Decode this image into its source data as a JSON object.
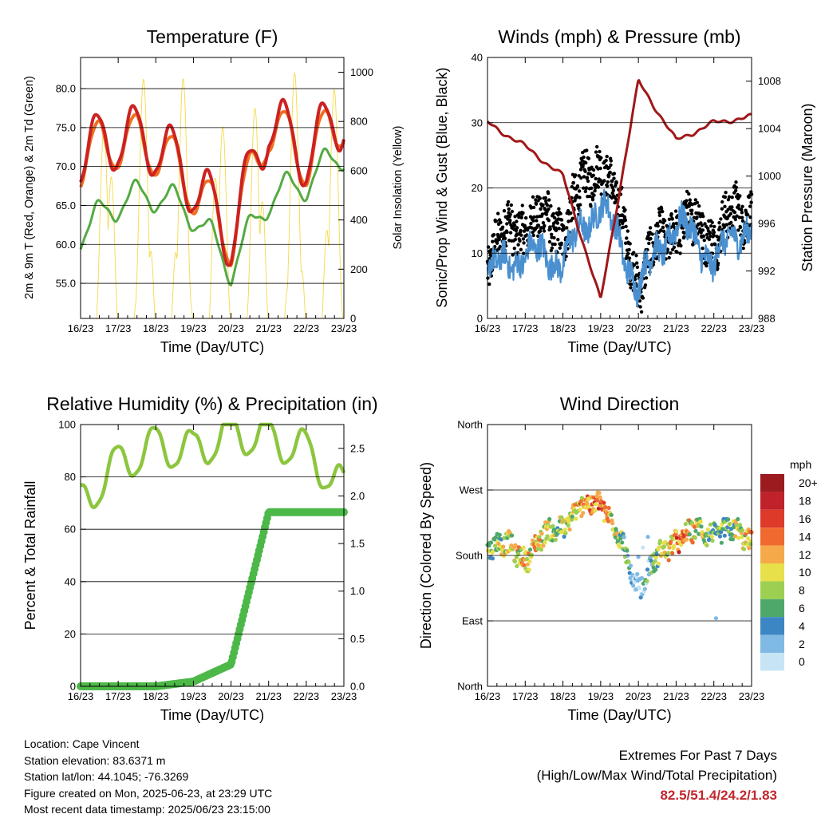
{
  "x_ticks": [
    "16/23",
    "17/23",
    "18/23",
    "19/23",
    "20/23",
    "21/23",
    "22/23",
    "23/23"
  ],
  "x_axis_label": "Time (Day/UTC)",
  "panels": {
    "temperature": {
      "title": "Temperature (F)",
      "left_label": "2m & 9m T (Red, Orange) & 2m Td (Green)",
      "right_label": "Solar Insolation (Yellow)",
      "left_ticks": [
        "55.0",
        "60.0",
        "65.0",
        "70.0",
        "75.0",
        "80.0"
      ],
      "right_ticks": [
        "0",
        "200",
        "400",
        "600",
        "800",
        "1000"
      ]
    },
    "winds": {
      "title": "Winds (mph) & Pressure (mb)",
      "left_label": "Sonic/Prop Wind & Gust (Blue, Black)",
      "right_label": "Station Pressure (Maroon)",
      "left_ticks": [
        "0",
        "10",
        "20",
        "30",
        "40"
      ],
      "right_ticks": [
        "988",
        "992",
        "996",
        "1000",
        "1004",
        "1008"
      ]
    },
    "humidity": {
      "title": "Relative Humidity (%) & Precipitation (in)",
      "left_label": "Percent & Total Rainfall",
      "left_ticks": [
        "0",
        "20",
        "40",
        "60",
        "80",
        "100"
      ],
      "right_ticks": [
        "0.0",
        "0.5",
        "1.0",
        "1.5",
        "2.0",
        "2.5"
      ]
    },
    "direction": {
      "title": "Wind Direction",
      "left_label": "Direction (Colored By Speed)",
      "left_ticks": [
        "North",
        "East",
        "South",
        "West",
        "North"
      ],
      "colorbar_title": "mph",
      "colorbar_labels": [
        "20+",
        "18",
        "16",
        "14",
        "12",
        "10",
        "8",
        "6",
        "4",
        "2",
        "0"
      ]
    }
  },
  "info": {
    "location": "Location: Cape Vincent",
    "elevation": "Station elevation: 83.6371 m",
    "latlon": "Station lat/lon: 44.1045; -76.3269",
    "created": "Figure created on Mon, 2025-06-23, at 23:29 UTC",
    "timestamp": "Most recent data timestamp: 2025/06/23 23:15:00"
  },
  "extremes": {
    "line1": "Extremes For Past 7 Days",
    "line2": "(High/Low/Max Wind/Total Precipitation)",
    "values": "82.5/51.4/24.2/1.83"
  },
  "colors": {
    "temp_2m": "#cc2222",
    "temp_9m": "#f07020",
    "dewpoint": "#55aa44",
    "solar": "#f5d94a",
    "wind": "#4a90d0",
    "gust": "#000000",
    "pressure": "#a01818",
    "humidity": "#8cc63f",
    "precip": "#4cb848",
    "colorbar": [
      "#9b1b1f",
      "#c0222a",
      "#dd3a2a",
      "#f06a30",
      "#f5a94a",
      "#e8e04a",
      "#9ccf52",
      "#4ea86a",
      "#3d86c4",
      "#80b9e4",
      "#c7e4f5"
    ]
  },
  "chart_data": [
    {
      "type": "line",
      "title": "Temperature (F)",
      "x": [
        "16/23",
        "17/23",
        "18/23",
        "19/23",
        "20/23",
        "21/23",
        "22/23",
        "23/23"
      ],
      "series": [
        {
          "name": "2m T",
          "axis": "left",
          "values": [
            71.5,
            74.0,
            73.0,
            68.0,
            61.0,
            76.0,
            71.5,
            77.0
          ]
        },
        {
          "name": "9m T",
          "axis": "left",
          "values": [
            71.0,
            73.5,
            72.5,
            67.5,
            60.8,
            75.5,
            71.0,
            76.5
          ]
        },
        {
          "name": "2m Td",
          "axis": "left",
          "values": [
            61.5,
            65.5,
            66.5,
            64.0,
            57.0,
            66.0,
            68.0,
            72.0
          ]
        },
        {
          "name": "Solar Insolation",
          "axis": "right",
          "values": [
            0,
            0,
            50,
            20,
            0,
            60,
            30,
            0
          ]
        }
      ],
      "xlabel": "Time (Day/UTC)",
      "ylabel": "2m & 9m T (Red, Orange) & 2m Td (Green)",
      "y2label": "Solar Insolation (Yellow)",
      "ylim": [
        50.5,
        84.0
      ],
      "y2lim": [
        0,
        1060
      ],
      "extremes": {
        "high": 82.5,
        "low": 51.4
      }
    },
    {
      "type": "line",
      "title": "Winds (mph) & Pressure (mb)",
      "x": [
        "16/23",
        "17/23",
        "18/23",
        "19/23",
        "20/23",
        "21/23",
        "22/23",
        "23/23"
      ],
      "series": [
        {
          "name": "Wind",
          "axis": "left",
          "values": [
            4,
            7,
            6,
            15,
            2,
            12,
            6,
            12
          ]
        },
        {
          "name": "Gust",
          "axis": "left",
          "values": [
            10,
            15,
            14,
            25,
            6,
            15,
            13,
            17
          ]
        },
        {
          "name": "Station Pressure",
          "axis": "right",
          "values": [
            1004.5,
            1002.5,
            1000.0,
            989.5,
            1008.0,
            1003.0,
            1004.5,
            1005.0
          ]
        }
      ],
      "xlabel": "Time (Day/UTC)",
      "ylabel": "Sonic/Prop Wind & Gust (Blue, Black)",
      "y2label": "Station Pressure (Maroon)",
      "ylim": [
        0,
        40
      ],
      "y2lim": [
        988,
        1010
      ],
      "extremes": {
        "max_wind": 24.2
      }
    },
    {
      "type": "line",
      "title": "Relative Humidity (%) & Precipitation (in)",
      "x": [
        "16/23",
        "17/23",
        "18/23",
        "19/23",
        "20/23",
        "21/23",
        "22/23",
        "23/23"
      ],
      "series": [
        {
          "name": "Relative Humidity",
          "axis": "left",
          "values": [
            70,
            85,
            92,
            90,
            97,
            95,
            90,
            75
          ]
        },
        {
          "name": "Total Precipitation",
          "axis": "right",
          "values": [
            0.0,
            0.0,
            0.0,
            0.05,
            0.23,
            1.83,
            1.83,
            1.83
          ]
        }
      ],
      "xlabel": "Time (Day/UTC)",
      "ylabel": "Percent & Total Rainfall",
      "ylim": [
        0,
        100
      ],
      "y2lim": [
        0,
        2.75
      ],
      "extremes": {
        "total_precipitation": 1.83
      }
    },
    {
      "type": "scatter",
      "title": "Wind Direction",
      "x": [
        "16/23",
        "17/23",
        "18/23",
        "19/23",
        "20/23",
        "21/23",
        "22/23",
        "23/23"
      ],
      "yticks": [
        "North",
        "East",
        "South",
        "West",
        "North"
      ],
      "ylim": [
        0,
        360
      ],
      "direction_deg": [
        200,
        180,
        225,
        260,
        140,
        205,
        215,
        205
      ],
      "speed_mph": [
        8,
        12,
        9,
        16,
        1,
        15,
        6,
        12
      ],
      "color_legend": {
        "title": "mph",
        "labels": [
          "20+",
          "18",
          "16",
          "14",
          "12",
          "10",
          "8",
          "6",
          "4",
          "2",
          "0"
        ]
      },
      "xlabel": "Time (Day/UTC)",
      "ylabel": "Direction (Colored By Speed)"
    }
  ]
}
